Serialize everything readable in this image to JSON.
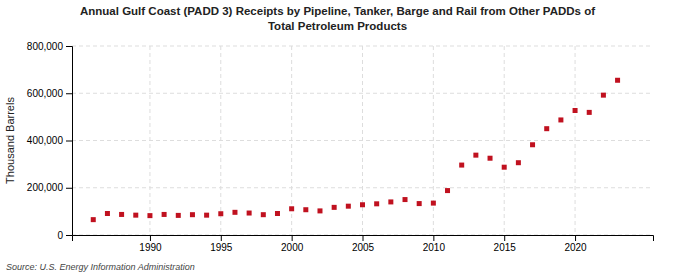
{
  "chart_data": {
    "type": "scatter",
    "title": "Annual Gulf Coast (PADD 3) Receipts by Pipeline, Tanker, Barge and Rail from Other PADDs of\nTotal Petroleum Products",
    "ylabel": "Thousand Barrels",
    "source": "Source: U.S. Energy Information Administration",
    "color": "#c0111f",
    "marker": "square",
    "grid": true,
    "x": [
      1986,
      1987,
      1988,
      1989,
      1990,
      1991,
      1992,
      1993,
      1994,
      1995,
      1996,
      1997,
      1998,
      1999,
      2000,
      2001,
      2002,
      2003,
      2004,
      2005,
      2006,
      2007,
      2008,
      2009,
      2010,
      2011,
      2012,
      2013,
      2014,
      2015,
      2016,
      2017,
      2018,
      2019,
      2020,
      2021,
      2022,
      2023
    ],
    "values": [
      65000,
      91000,
      87000,
      84000,
      82000,
      87000,
      83000,
      86000,
      84000,
      90000,
      96000,
      93000,
      86000,
      91000,
      111000,
      107000,
      102000,
      117000,
      122000,
      128000,
      132000,
      140000,
      150000,
      133000,
      135000,
      188000,
      296000,
      338000,
      325000,
      287000,
      306000,
      382000,
      450000,
      487000,
      527000,
      519000,
      592000,
      655000
    ],
    "xlim": [
      1984.5,
      2025.5
    ],
    "xticks": [
      1990,
      1995,
      2000,
      2005,
      2010,
      2015,
      2020
    ],
    "ylim": [
      0,
      800000
    ],
    "yticks": [
      0,
      {
        "value": 200000,
        "label": "200,000"
      },
      {
        "value": 400000,
        "label": "400,000"
      },
      {
        "value": 600000,
        "label": "600,000"
      },
      {
        "value": 800000,
        "label": "800,000"
      }
    ]
  }
}
